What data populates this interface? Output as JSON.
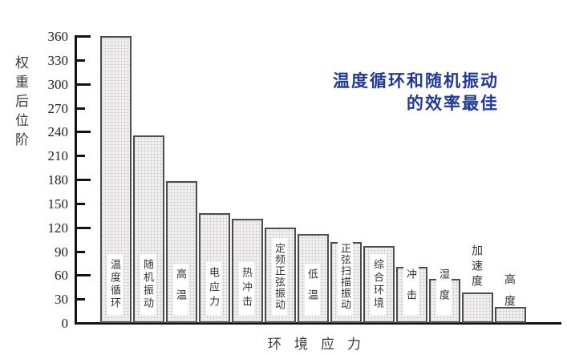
{
  "chart_data": {
    "type": "bar",
    "title": "",
    "ylabel": "权重后位阶",
    "xlabel": "环境应力",
    "ylim": [
      0,
      360
    ],
    "ytick_step": 30,
    "yticks": [
      0,
      30,
      60,
      90,
      120,
      150,
      180,
      210,
      240,
      270,
      300,
      330,
      360
    ],
    "categories": [
      "温度循环",
      "随机振动",
      "高温",
      "电应力",
      "热冲击",
      "定频正弦振动",
      "低温",
      "正弦扫描振动",
      "综合环境",
      "冲击",
      "湿度",
      "加速度",
      "高度"
    ],
    "values": [
      360,
      235,
      178,
      138,
      131,
      120,
      112,
      102,
      97,
      70,
      55,
      38,
      20
    ],
    "label_placement": [
      "inside",
      "inside",
      "inside",
      "inside",
      "inside",
      "inside",
      "inside",
      "inside",
      "inside",
      "inside",
      "inside",
      "above",
      "above"
    ],
    "grid": "off",
    "legend": "none",
    "annotation": {
      "line1": "温度循环和随机振动",
      "line2": "的效率最佳"
    },
    "colors": {
      "annotation_text": "#223a8f",
      "bar_fill": "#f3f1f1",
      "bar_border": "#4d4d4d",
      "axis": "#111111",
      "label_text": "#333333"
    }
  }
}
